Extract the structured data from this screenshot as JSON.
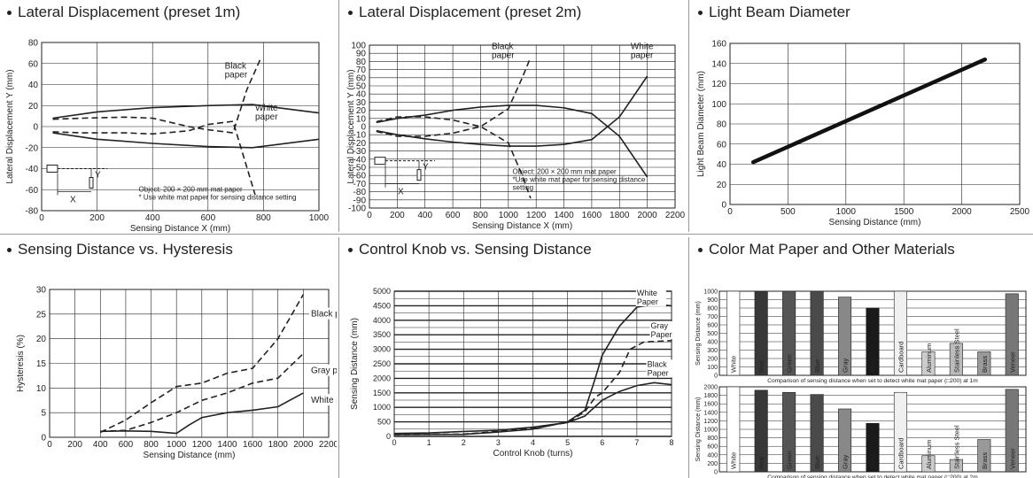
{
  "chart_data": [
    {
      "id": "p1",
      "type": "line",
      "title": "Lateral Displacement (preset 1m)",
      "xlabel": "Sensing Distance X (mm)",
      "ylabel": "Lateral Displacement Y (mm)",
      "xlim": [
        0,
        1000
      ],
      "ylim": [
        -80,
        80
      ],
      "xticks": [
        0,
        200,
        400,
        600,
        800,
        1000
      ],
      "yticks": [
        -80,
        -60,
        -40,
        -20,
        0,
        20,
        40,
        60,
        80
      ],
      "grid": true,
      "series": [
        {
          "name": "White paper",
          "style": "solid",
          "upper": [
            [
              40,
              8
            ],
            [
              200,
              14
            ],
            [
              400,
              18
            ],
            [
              600,
              20
            ],
            [
              760,
              21
            ],
            [
              1000,
              13
            ]
          ],
          "lower": [
            [
              40,
              -6
            ],
            [
              200,
              -12
            ],
            [
              400,
              -16
            ],
            [
              600,
              -19
            ],
            [
              760,
              -20
            ],
            [
              1000,
              -12
            ]
          ]
        },
        {
          "name": "Black paper",
          "style": "dashed",
          "upper": [
            [
              40,
              7
            ],
            [
              150,
              8
            ],
            [
              300,
              9
            ],
            [
              400,
              8
            ],
            [
              530,
              0
            ],
            [
              600,
              -3
            ],
            [
              690,
              -6
            ],
            [
              740,
              35
            ],
            [
              790,
              65
            ]
          ],
          "lower": [
            [
              40,
              -5
            ],
            [
              150,
              -6
            ],
            [
              300,
              -6
            ],
            [
              400,
              -7
            ],
            [
              530,
              -4
            ],
            [
              600,
              2
            ],
            [
              690,
              5
            ],
            [
              730,
              -30
            ],
            [
              770,
              -65
            ]
          ]
        }
      ],
      "labels": {
        "black": [
          "Black",
          "paper"
        ],
        "white": [
          "White",
          "paper"
        ]
      },
      "notes": [
        "Object: 200 × 200 mm mat paper",
        "* Use white mat paper for sensing distance setting"
      ],
      "inset": {
        "x": "X",
        "y": "Y"
      }
    },
    {
      "id": "p2",
      "type": "line",
      "title": "Lateral Displacement (preset 2m)",
      "xlabel": "Sensing Distance X (mm)",
      "ylabel": "Lateral Displacement Y (mm)",
      "xlim": [
        0,
        2200
      ],
      "ylim": [
        -100,
        100
      ],
      "xticks": [
        0,
        200,
        400,
        600,
        800,
        1000,
        1200,
        1400,
        1600,
        1800,
        2000,
        2200
      ],
      "yticks": [
        -100,
        -90,
        -80,
        -70,
        -60,
        -50,
        -40,
        -30,
        -20,
        -10,
        0,
        10,
        20,
        30,
        40,
        50,
        60,
        70,
        80,
        90,
        100
      ],
      "grid": true,
      "series": [
        {
          "name": "White paper",
          "style": "solid",
          "upper": [
            [
              50,
              5
            ],
            [
              200,
              10
            ],
            [
              400,
              14
            ],
            [
              600,
              20
            ],
            [
              800,
              24
            ],
            [
              1000,
              26
            ],
            [
              1200,
              26
            ],
            [
              1400,
              23
            ],
            [
              1600,
              16
            ],
            [
              1800,
              -12
            ],
            [
              2000,
              -62
            ]
          ],
          "lower": [
            [
              50,
              -5
            ],
            [
              200,
              -10
            ],
            [
              400,
              -15
            ],
            [
              600,
              -19
            ],
            [
              800,
              -22
            ],
            [
              1000,
              -24
            ],
            [
              1200,
              -24
            ],
            [
              1400,
              -22
            ],
            [
              1600,
              -16
            ],
            [
              1800,
              12
            ],
            [
              2000,
              62
            ]
          ]
        },
        {
          "name": "Black paper",
          "style": "dashed",
          "upper": [
            [
              50,
              6
            ],
            [
              200,
              12
            ],
            [
              400,
              12
            ],
            [
              600,
              8
            ],
            [
              800,
              0
            ],
            [
              1000,
              -20
            ],
            [
              1100,
              -60
            ],
            [
              1160,
              -88
            ]
          ],
          "lower": [
            [
              50,
              -6
            ],
            [
              200,
              -12
            ],
            [
              400,
              -12
            ],
            [
              600,
              -8
            ],
            [
              800,
              0
            ],
            [
              1000,
              22
            ],
            [
              1100,
              60
            ],
            [
              1160,
              85
            ]
          ]
        }
      ],
      "labels": {
        "black": [
          "Black",
          "paper"
        ],
        "white": [
          "White",
          "paper"
        ]
      },
      "notes": [
        "Object: 200 × 200 mm mat paper",
        "*Use white mat paper for sensing distance",
        "setting"
      ],
      "inset": {
        "x": "X",
        "y": "Y"
      }
    },
    {
      "id": "p3",
      "type": "line",
      "title": "Light Beam Diameter",
      "xlabel": "Sensing Distance (mm)",
      "ylabel": "Light Beam Diameter (mm)",
      "xlim": [
        0,
        2500
      ],
      "ylim": [
        0,
        160
      ],
      "xticks": [
        0,
        500,
        1000,
        1500,
        2000,
        2500
      ],
      "yticks": [
        0,
        20,
        40,
        60,
        80,
        100,
        120,
        140,
        160
      ],
      "grid": true,
      "series": [
        {
          "name": "",
          "values": [
            [
              200,
              42
            ],
            [
              2200,
              144
            ]
          ]
        }
      ]
    },
    {
      "id": "p4",
      "type": "line",
      "title": "Sensing Distance vs. Hysteresis",
      "xlabel": "Sensing Distance (mm)",
      "ylabel": "Hysteresis (%)",
      "xlim": [
        0,
        2200
      ],
      "ylim": [
        0,
        30
      ],
      "xticks": [
        0,
        200,
        400,
        600,
        800,
        1000,
        1200,
        1400,
        1600,
        1800,
        2000,
        2200
      ],
      "yticks": [
        0,
        5,
        10,
        15,
        20,
        25,
        30
      ],
      "grid": true,
      "series": [
        {
          "name": "Black paper",
          "style": "dashed",
          "values": [
            [
              400,
              1
            ],
            [
              600,
              3.5
            ],
            [
              800,
              7
            ],
            [
              1000,
              10.3
            ],
            [
              1200,
              11
            ],
            [
              1400,
              13
            ],
            [
              1600,
              14
            ],
            [
              1800,
              20
            ],
            [
              2000,
              29
            ]
          ]
        },
        {
          "name": "Gray paper",
          "style": "dashed",
          "values": [
            [
              400,
              1.2
            ],
            [
              600,
              1.4
            ],
            [
              800,
              3
            ],
            [
              1000,
              5
            ],
            [
              1200,
              7.5
            ],
            [
              1400,
              9
            ],
            [
              1600,
              11
            ],
            [
              1800,
              12
            ],
            [
              2000,
              17
            ]
          ]
        },
        {
          "name": "White paper",
          "style": "solid",
          "values": [
            [
              400,
              1.2
            ],
            [
              600,
              1.3
            ],
            [
              800,
              1.2
            ],
            [
              1000,
              0.8
            ],
            [
              1100,
              2.5
            ],
            [
              1200,
              4
            ],
            [
              1400,
              5
            ],
            [
              1600,
              5.5
            ],
            [
              1800,
              6.2
            ],
            [
              2000,
              9
            ]
          ]
        }
      ]
    },
    {
      "id": "p5",
      "type": "line",
      "title": "Control Knob vs. Sensing Distance",
      "xlabel": "Control Knob (turns)",
      "ylabel": "Sensing Distance (mm)",
      "xlim": [
        0,
        8
      ],
      "ylim": [
        0,
        5000
      ],
      "xticks": [
        0,
        1,
        2,
        3,
        4,
        5,
        6,
        7,
        8
      ],
      "yticks": [
        0,
        250,
        500,
        750,
        1000,
        1250,
        1500,
        1750,
        2000,
        2250,
        2500,
        2750,
        3000,
        3250,
        3500,
        3750,
        4000,
        4250,
        4500,
        4750,
        5000
      ],
      "grid": true,
      "series": [
        {
          "name": "White Paper",
          "style": "solid",
          "values": [
            [
              0,
              60
            ],
            [
              2,
              70
            ],
            [
              3,
              150
            ],
            [
              4,
              250
            ],
            [
              5,
              500
            ],
            [
              5.5,
              900
            ],
            [
              5.8,
              2000
            ],
            [
              6,
              2800
            ],
            [
              6.5,
              3800
            ],
            [
              7,
              4450
            ],
            [
              7.5,
              4550
            ],
            [
              8,
              4500
            ]
          ]
        },
        {
          "name": "Gray Paper",
          "style": "dashed",
          "values": [
            [
              0,
              60
            ],
            [
              2,
              80
            ],
            [
              3,
              170
            ],
            [
              4,
              280
            ],
            [
              5,
              480
            ],
            [
              5.5,
              850
            ],
            [
              5.8,
              1350
            ],
            [
              6,
              1500
            ],
            [
              6.5,
              2200
            ],
            [
              6.8,
              3000
            ],
            [
              7.2,
              3250
            ],
            [
              8,
              3300
            ]
          ]
        },
        {
          "name": "Black Paper",
          "style": "solid",
          "values": [
            [
              0,
              100
            ],
            [
              1,
              120
            ],
            [
              2,
              170
            ],
            [
              3,
              210
            ],
            [
              4,
              320
            ],
            [
              5,
              480
            ],
            [
              5.5,
              700
            ],
            [
              6,
              1250
            ],
            [
              6.5,
              1550
            ],
            [
              7,
              1750
            ],
            [
              7.5,
              1850
            ],
            [
              8,
              1780
            ]
          ]
        }
      ],
      "label_lines": [
        [
          "White",
          "Paper"
        ],
        [
          "Gray",
          "Paper"
        ],
        [
          "Black",
          "Paper"
        ]
      ]
    },
    {
      "id": "p6",
      "type": "bar",
      "title": "Color Mat Paper and Other Materials",
      "categories": [
        "White",
        "Red",
        "Green",
        "Blue",
        "Gray",
        "Black",
        "Cardboard",
        "Aluminum",
        "Stainless Steel",
        "Brass",
        "Veneer"
      ],
      "colors": [
        "#ffffff",
        "#383838",
        "#555555",
        "#4a4a4a",
        "#888888",
        "#1a1a1a",
        "#f0f0f0",
        "#cccccc",
        "#bbbbbb",
        "#999999",
        "#777777"
      ],
      "subcharts": [
        {
          "caption": "Comparison of sensing distance when set to detect white mat paper (□200) at 1m",
          "ylabel": "Sensing Distance (mm)",
          "ylim": [
            0,
            1000
          ],
          "yticks": [
            0,
            100,
            200,
            300,
            400,
            500,
            600,
            700,
            800,
            900,
            1000
          ],
          "values": [
            1000,
            1000,
            1000,
            1000,
            930,
            800,
            1000,
            280,
            380,
            280,
            970
          ]
        },
        {
          "caption": "Comparison of sensing distance when set to detect white mat paper (□200) at 2m",
          "ylabel": "Sensing Distance (mm)",
          "ylim": [
            0,
            2000
          ],
          "yticks": [
            0,
            200,
            400,
            600,
            800,
            1000,
            1200,
            1400,
            1600,
            1800,
            2000
          ],
          "values": [
            2000,
            1920,
            1870,
            1820,
            1480,
            1140,
            1870,
            380,
            290,
            760,
            1940
          ]
        }
      ]
    }
  ]
}
